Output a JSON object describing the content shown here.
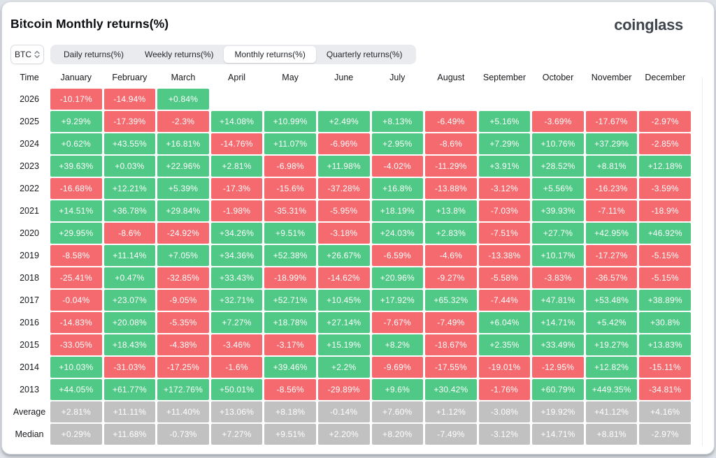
{
  "page": {
    "title": "Bitcoin Monthly returns(%)",
    "logo": "coinglass"
  },
  "controls": {
    "symbol": {
      "value": "BTC",
      "icon": "updown-chevron-icon"
    },
    "tabs": [
      {
        "label": "Daily returns(%)",
        "active": false
      },
      {
        "label": "Weekly returns(%)",
        "active": false
      },
      {
        "label": "Monthly returns(%)",
        "active": true
      },
      {
        "label": "Quarterly returns(%)",
        "active": false
      }
    ]
  },
  "colors": {
    "positive": "#4fc985",
    "negative": "#f56a6e",
    "neutral": "#c1c1c1"
  },
  "table": {
    "columns": [
      "Time",
      "January",
      "February",
      "March",
      "April",
      "May",
      "June",
      "July",
      "August",
      "September",
      "October",
      "November",
      "December"
    ],
    "rows": [
      {
        "label": "2026",
        "kind": "year",
        "values": [
          "-10.17%",
          "-14.94%",
          "+0.84%",
          "",
          "",
          "",
          "",
          "",
          "",
          "",
          "",
          ""
        ]
      },
      {
        "label": "2025",
        "kind": "year",
        "values": [
          "+9.29%",
          "-17.39%",
          "-2.3%",
          "+14.08%",
          "+10.99%",
          "+2.49%",
          "+8.13%",
          "-6.49%",
          "+5.16%",
          "-3.69%",
          "-17.67%",
          "-2.97%"
        ]
      },
      {
        "label": "2024",
        "kind": "year",
        "values": [
          "+0.62%",
          "+43.55%",
          "+16.81%",
          "-14.76%",
          "+11.07%",
          "-6.96%",
          "+2.95%",
          "-8.6%",
          "+7.29%",
          "+10.76%",
          "+37.29%",
          "-2.85%"
        ]
      },
      {
        "label": "2023",
        "kind": "year",
        "values": [
          "+39.63%",
          "+0.03%",
          "+22.96%",
          "+2.81%",
          "-6.98%",
          "+11.98%",
          "-4.02%",
          "-11.29%",
          "+3.91%",
          "+28.52%",
          "+8.81%",
          "+12.18%"
        ]
      },
      {
        "label": "2022",
        "kind": "year",
        "values": [
          "-16.68%",
          "+12.21%",
          "+5.39%",
          "-17.3%",
          "-15.6%",
          "-37.28%",
          "+16.8%",
          "-13.88%",
          "-3.12%",
          "+5.56%",
          "-16.23%",
          "-3.59%"
        ]
      },
      {
        "label": "2021",
        "kind": "year",
        "values": [
          "+14.51%",
          "+36.78%",
          "+29.84%",
          "-1.98%",
          "-35.31%",
          "-5.95%",
          "+18.19%",
          "+13.8%",
          "-7.03%",
          "+39.93%",
          "-7.11%",
          "-18.9%"
        ]
      },
      {
        "label": "2020",
        "kind": "year",
        "values": [
          "+29.95%",
          "-8.6%",
          "-24.92%",
          "+34.26%",
          "+9.51%",
          "-3.18%",
          "+24.03%",
          "+2.83%",
          "-7.51%",
          "+27.7%",
          "+42.95%",
          "+46.92%"
        ]
      },
      {
        "label": "2019",
        "kind": "year",
        "values": [
          "-8.58%",
          "+11.14%",
          "+7.05%",
          "+34.36%",
          "+52.38%",
          "+26.67%",
          "-6.59%",
          "-4.6%",
          "-13.38%",
          "+10.17%",
          "-17.27%",
          "-5.15%"
        ]
      },
      {
        "label": "2018",
        "kind": "year",
        "values": [
          "-25.41%",
          "+0.47%",
          "-32.85%",
          "+33.43%",
          "-18.99%",
          "-14.62%",
          "+20.96%",
          "-9.27%",
          "-5.58%",
          "-3.83%",
          "-36.57%",
          "-5.15%"
        ]
      },
      {
        "label": "2017",
        "kind": "year",
        "values": [
          "-0.04%",
          "+23.07%",
          "-9.05%",
          "+32.71%",
          "+52.71%",
          "+10.45%",
          "+17.92%",
          "+65.32%",
          "-7.44%",
          "+47.81%",
          "+53.48%",
          "+38.89%"
        ]
      },
      {
        "label": "2016",
        "kind": "year",
        "values": [
          "-14.83%",
          "+20.08%",
          "-5.35%",
          "+7.27%",
          "+18.78%",
          "+27.14%",
          "-7.67%",
          "-7.49%",
          "+6.04%",
          "+14.71%",
          "+5.42%",
          "+30.8%"
        ]
      },
      {
        "label": "2015",
        "kind": "year",
        "values": [
          "-33.05%",
          "+18.43%",
          "-4.38%",
          "-3.46%",
          "-3.17%",
          "+15.19%",
          "+8.2%",
          "-18.67%",
          "+2.35%",
          "+33.49%",
          "+19.27%",
          "+13.83%"
        ]
      },
      {
        "label": "2014",
        "kind": "year",
        "values": [
          "+10.03%",
          "-31.03%",
          "-17.25%",
          "-1.6%",
          "+39.46%",
          "+2.2%",
          "-9.69%",
          "-17.55%",
          "-19.01%",
          "-12.95%",
          "+12.82%",
          "-15.11%"
        ]
      },
      {
        "label": "2013",
        "kind": "year",
        "values": [
          "+44.05%",
          "+61.77%",
          "+172.76%",
          "+50.01%",
          "-8.56%",
          "-29.89%",
          "+9.6%",
          "+30.42%",
          "-1.76%",
          "+60.79%",
          "+449.35%",
          "-34.81%"
        ]
      },
      {
        "label": "Average",
        "kind": "summary",
        "values": [
          "+2.81%",
          "+11.11%",
          "+11.40%",
          "+13.06%",
          "+8.18%",
          "-0.14%",
          "+7.60%",
          "+1.12%",
          "-3.08%",
          "+19.92%",
          "+41.12%",
          "+4.16%"
        ]
      },
      {
        "label": "Median",
        "kind": "summary",
        "values": [
          "+0.29%",
          "+11.68%",
          "-0.73%",
          "+7.27%",
          "+9.51%",
          "+2.20%",
          "+8.20%",
          "-7.49%",
          "-3.12%",
          "+14.71%",
          "+8.81%",
          "-2.97%"
        ]
      }
    ]
  }
}
